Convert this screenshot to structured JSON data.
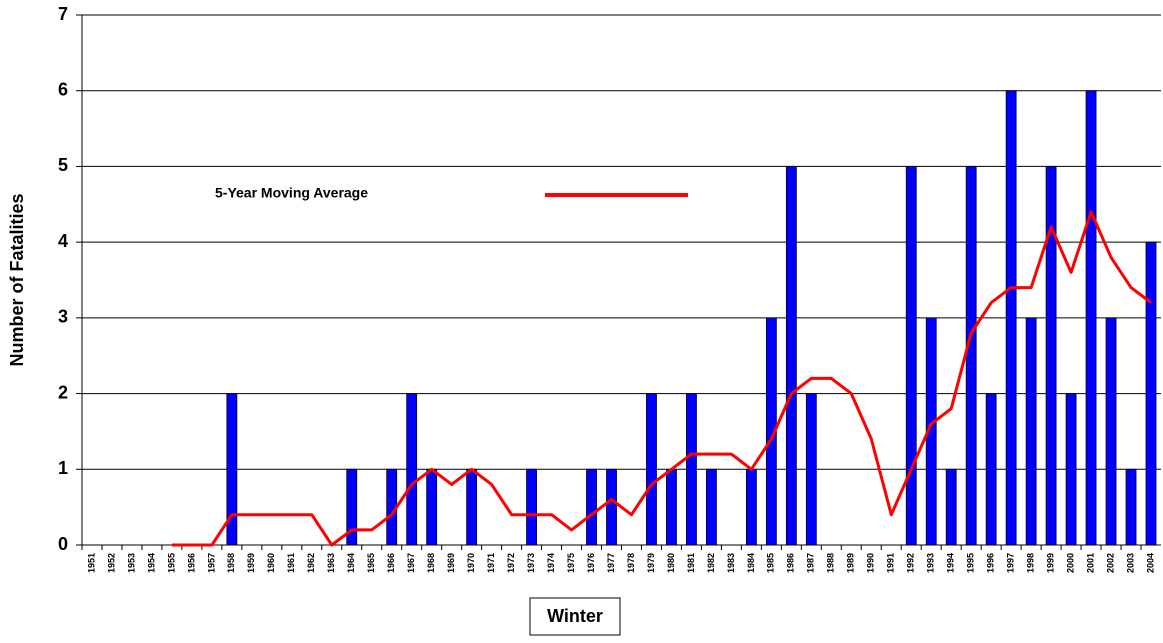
{
  "chart_data": {
    "type": "bar",
    "y_label": "Number of Fatalities",
    "x_label": "Winter",
    "categories": [
      "1951",
      "1952",
      "1953",
      "1954",
      "1955",
      "1956",
      "1957",
      "1958",
      "1959",
      "1960",
      "1961",
      "1962",
      "1963",
      "1964",
      "1965",
      "1966",
      "1967",
      "1968",
      "1969",
      "1970",
      "1971",
      "1972",
      "1973",
      "1974",
      "1975",
      "1976",
      "1977",
      "1978",
      "1979",
      "1980",
      "1981",
      "1982",
      "1983",
      "1984",
      "1985",
      "1986",
      "1987",
      "1988",
      "1989",
      "1990",
      "1991",
      "1992",
      "1993",
      "1994",
      "1995",
      "1996",
      "1997",
      "1998",
      "1999",
      "2000",
      "2001",
      "2002",
      "2003",
      "2004"
    ],
    "values": [
      0,
      0,
      0,
      0,
      0,
      0,
      0,
      2,
      0,
      0,
      0,
      0,
      0,
      1,
      0,
      1,
      2,
      1,
      0,
      1,
      0,
      0,
      1,
      0,
      0,
      1,
      1,
      0,
      2,
      1,
      2,
      1,
      0,
      1,
      3,
      5,
      2,
      0,
      0,
      0,
      0,
      5,
      3,
      1,
      5,
      2,
      6,
      3,
      5,
      2,
      6,
      3,
      1,
      4
    ],
    "color": "#0000ff",
    "series": [
      {
        "name": "5-Year Moving Average",
        "type": "line",
        "color": "#ff0000",
        "values": [
          null,
          null,
          null,
          null,
          0,
          0,
          0,
          0.4,
          0.4,
          0.4,
          0.4,
          0.4,
          0,
          0.2,
          0.2,
          0.4,
          0.8,
          1.0,
          0.8,
          1.0,
          0.8,
          0.4,
          0.4,
          0.4,
          0.2,
          0.4,
          0.6,
          0.4,
          0.8,
          1.0,
          1.2,
          1.2,
          1.2,
          1.0,
          1.4,
          2.0,
          2.2,
          2.2,
          2.0,
          1.4,
          0.4,
          1.0,
          1.6,
          1.8,
          2.8,
          3.2,
          3.4,
          3.4,
          4.2,
          3.6,
          4.4,
          3.8,
          3.4,
          3.2
        ]
      }
    ],
    "ylim": [
      0,
      7
    ],
    "yticks": [
      0,
      1,
      2,
      3,
      4,
      5,
      6,
      7
    ],
    "grid": true
  }
}
